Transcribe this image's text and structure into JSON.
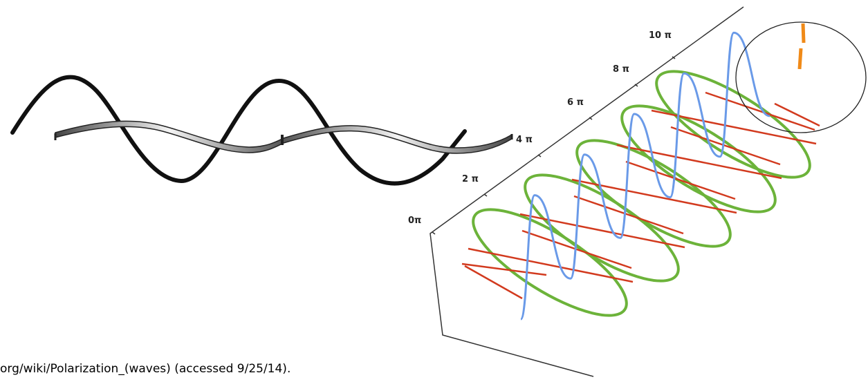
{
  "caption": "org/wiki/Polarization_(waves) (accessed 9/25/14).",
  "axis": {
    "tick_labels": [
      "0π",
      "2 π",
      "4 π",
      "6 π",
      "8 π",
      "10 π"
    ]
  },
  "colors": {
    "black_wave": "#111111",
    "ribbon_light": "#f2f2f2",
    "ribbon_dark": "#3a3a3a",
    "green_ellipse": "#6cb33a",
    "red_line": "#d23a1e",
    "blue_helix": "#6a9ae8",
    "orange_vector": "#f08a18",
    "frame": "#333333"
  }
}
